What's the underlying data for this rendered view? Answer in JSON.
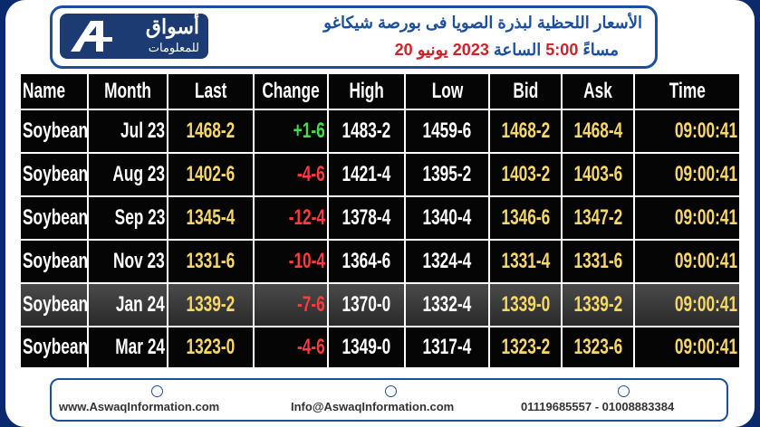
{
  "header": {
    "logo": {
      "name": "أسواق",
      "subtitle": "للمعلومات"
    },
    "title": "الأسعار اللحظية لبذرة الصويا فى بورصة شيكاغو",
    "line2": [
      {
        "text": "مساءً",
        "tone": "blue"
      },
      {
        "text": "5:00",
        "tone": "red"
      },
      {
        "text": "الساعة",
        "tone": "blue"
      },
      {
        "text": "2023",
        "tone": "red"
      },
      {
        "text": "يونيو",
        "tone": "red"
      },
      {
        "text": "20",
        "tone": "red"
      }
    ]
  },
  "table": {
    "columns": [
      "Name",
      "Month",
      "Last",
      "Change",
      "High",
      "Low",
      "Bid",
      "Ask",
      "Time"
    ],
    "rows": [
      [
        "Soybean",
        "Jul 23",
        "1468-2",
        "+1-6",
        "1483-2",
        "1459-6",
        "1468-2",
        "1468-4",
        "09:00:41"
      ],
      [
        "Soybean",
        "Aug 23",
        "1402-6",
        "-4-6",
        "1421-4",
        "1395-2",
        "1403-2",
        "1403-6",
        "09:00:41"
      ],
      [
        "Soybean",
        "Sep 23",
        "1345-4",
        "-12-4",
        "1378-4",
        "1340-4",
        "1346-6",
        "1347-2",
        "09:00:41"
      ],
      [
        "Soybean",
        "Nov 23",
        "1331-6",
        "-10-4",
        "1364-6",
        "1324-4",
        "1331-4",
        "1331-6",
        "09:00:41"
      ],
      [
        "Soybean",
        "Jan 24",
        "1339-2",
        "-7-6",
        "1370-0",
        "1332-4",
        "1339-0",
        "1339-2",
        "09:00:41"
      ],
      [
        "Soybean",
        "Mar 24",
        "1323-0",
        "-4-6",
        "1349-0",
        "1317-4",
        "1323-2",
        "1323-6",
        "09:00:41"
      ]
    ]
  },
  "footer": {
    "website": "www.AswaqInformation.com",
    "email": "Info@AswaqInformation.com",
    "phones": "01119685557 - 01008883384"
  }
}
